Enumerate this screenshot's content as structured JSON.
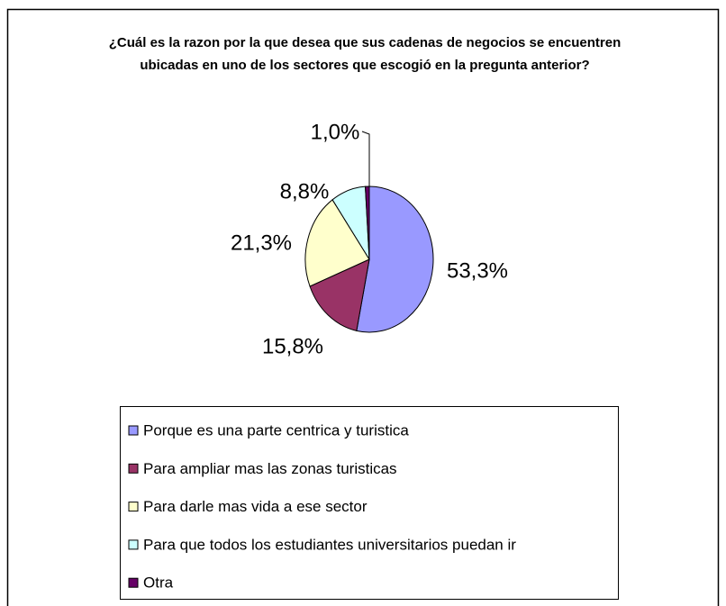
{
  "chart_data": {
    "type": "pie",
    "title": "¿Cuál es la razon por la que desea  que sus cadenas de negocios se encuentren ubicadas en  uno de los sectores que escogió en la pregunta anterior?",
    "categories": [
      "Porque es una parte centrica y turistica",
      "Para ampliar mas las zonas turisticas",
      "Para darle mas vida a ese sector",
      "Para que todos los estudiantes universitarios puedan ir",
      "Otra"
    ],
    "values": [
      53.3,
      15.8,
      21.3,
      8.8,
      1.0
    ],
    "value_labels": [
      "53,3%",
      "15,8%",
      "21,3%",
      "8,8%",
      "1,0%"
    ],
    "colors": [
      "#9999ff",
      "#993366",
      "#ffffcc",
      "#ccffff",
      "#660066"
    ]
  }
}
